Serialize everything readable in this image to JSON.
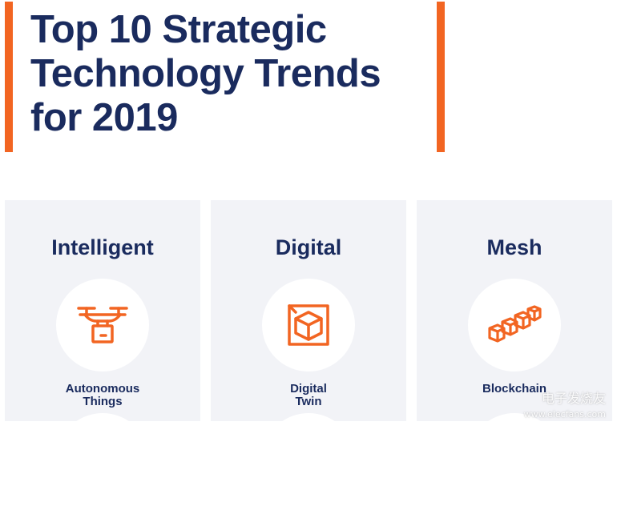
{
  "header": {
    "title_lines": [
      "Top 10 Strategic",
      "Technology Trends",
      "for 2019"
    ]
  },
  "colors": {
    "accent": "#f26522",
    "navy": "#1a2b5e",
    "card_bg": "#f2f3f7"
  },
  "cards": [
    {
      "title": "Intelligent",
      "icon": "drone-icon",
      "label_lines": [
        "Autonomous",
        "Things"
      ]
    },
    {
      "title": "Digital",
      "icon": "cube-icon",
      "label_lines": [
        "Digital",
        "Twin"
      ]
    },
    {
      "title": "Mesh",
      "icon": "blockchain-icon",
      "label_lines": [
        "Blockchain"
      ]
    }
  ],
  "watermark": {
    "text": "电子发烧友",
    "url": "www.elecfans.com"
  }
}
